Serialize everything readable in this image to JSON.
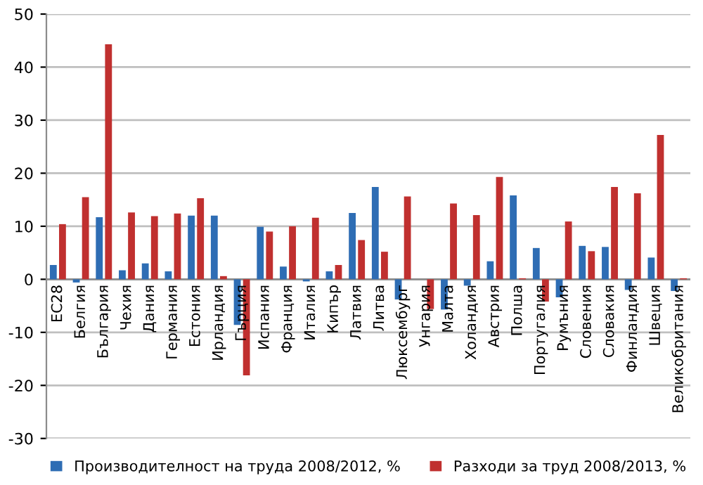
{
  "chart_data": {
    "type": "bar",
    "categories": [
      "ЕС28",
      "Белгия",
      "България",
      "Чехия",
      "Дания",
      "Германия",
      "Естония",
      "Ирландия",
      "Гърция",
      "Испания",
      "Франция",
      "Италия",
      "Кипър",
      "Латвия",
      "Литва",
      "Люксембург",
      "Унгария",
      "Малта",
      "Холандия",
      "Австрия",
      "Полша",
      "Португалия",
      "Румъния",
      "Словения",
      "Словакия",
      "Финландия",
      "Швеция",
      "Великобритания"
    ],
    "series": [
      {
        "name": "Производителност на труда 2008/2012, %",
        "color": "#2e6db4",
        "values": [
          2.7,
          -0.6,
          11.7,
          1.7,
          3.0,
          1.5,
          12.0,
          12.0,
          -8.6,
          9.9,
          2.4,
          -0.4,
          1.5,
          12.5,
          17.4,
          -3.8,
          0,
          -5.7,
          -1.2,
          3.4,
          15.8,
          5.9,
          -3.4,
          6.3,
          6.1,
          -2.0,
          4.1,
          -2.2
        ]
      },
      {
        "name": "Разходи за труд 2008/2013, %",
        "color": "#c0302f",
        "values": [
          10.4,
          15.5,
          44.3,
          12.6,
          11.9,
          12.4,
          15.3,
          0.6,
          -18.1,
          9.0,
          10.0,
          11.6,
          2.7,
          7.4,
          5.2,
          15.6,
          -5.6,
          14.3,
          12.1,
          19.3,
          0.2,
          -4.2,
          10.9,
          5.3,
          17.4,
          16.2,
          27.2,
          0.2
        ]
      }
    ],
    "ylim": [
      -30,
      50
    ],
    "yticks": [
      -30,
      -20,
      -10,
      0,
      10,
      20,
      30,
      40,
      50
    ],
    "grid": "y",
    "legend": "bottom"
  }
}
